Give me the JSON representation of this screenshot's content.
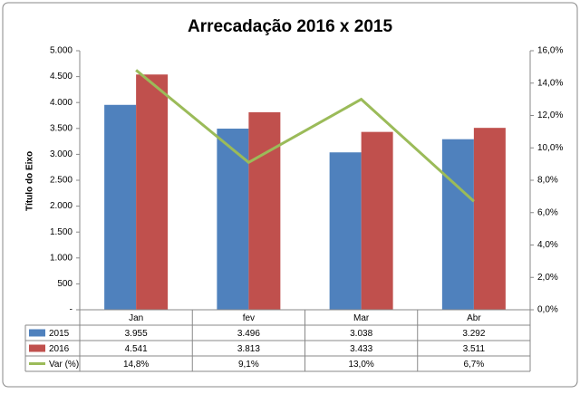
{
  "chart_data": {
    "type": "bar",
    "title": "Arrecadação 2016 x 2015",
    "ylabel": "Título do Eixo",
    "categories": [
      "Jan",
      "fev",
      "Mar",
      "Abr"
    ],
    "series": [
      {
        "name": "2015",
        "color": "#4f81bd",
        "values": [
          3955,
          3496,
          3038,
          3292
        ],
        "value_labels": [
          "3.955",
          "3.496",
          "3.038",
          "3.292"
        ]
      },
      {
        "name": "2016",
        "color": "#c0504d",
        "values": [
          4541,
          3813,
          3433,
          3511
        ],
        "value_labels": [
          "4.541",
          "3.813",
          "3.433",
          "3.511"
        ]
      },
      {
        "name": "Var (%)",
        "color": "#9bbb59",
        "type": "line",
        "axis": "y2",
        "values": [
          14.8,
          9.1,
          13.0,
          6.7
        ],
        "value_labels": [
          "14,8%",
          "9,1%",
          "13,0%",
          "6,7%"
        ]
      }
    ],
    "ylim": [
      0,
      5000
    ],
    "yticks": [
      {
        "value": 0,
        "label": "-"
      },
      500,
      {
        "value": 1000,
        "label": "1.000"
      },
      {
        "value": 1500,
        "label": "1.500"
      },
      {
        "value": 2000,
        "label": "2.000"
      },
      {
        "value": 2500,
        "label": "2.500"
      },
      {
        "value": 3000,
        "label": "3.000"
      },
      {
        "value": 3500,
        "label": "3.500"
      },
      {
        "value": 4000,
        "label": "4.000"
      },
      {
        "value": 4500,
        "label": "4.500"
      },
      {
        "value": 5000,
        "label": "5.000"
      }
    ],
    "y2lim": [
      0,
      16
    ],
    "y2ticks": [
      {
        "value": 0,
        "label": "0,0%"
      },
      {
        "value": 2,
        "label": "2,0%"
      },
      {
        "value": 4,
        "label": "4,0%"
      },
      {
        "value": 6,
        "label": "6,0%"
      },
      {
        "value": 8,
        "label": "8,0%"
      },
      {
        "value": 10,
        "label": "10,0%"
      },
      {
        "value": 12,
        "label": "12,0%"
      },
      {
        "value": 14,
        "label": "14,0%"
      },
      {
        "value": 16,
        "label": "16,0%"
      }
    ],
    "grid": false
  }
}
